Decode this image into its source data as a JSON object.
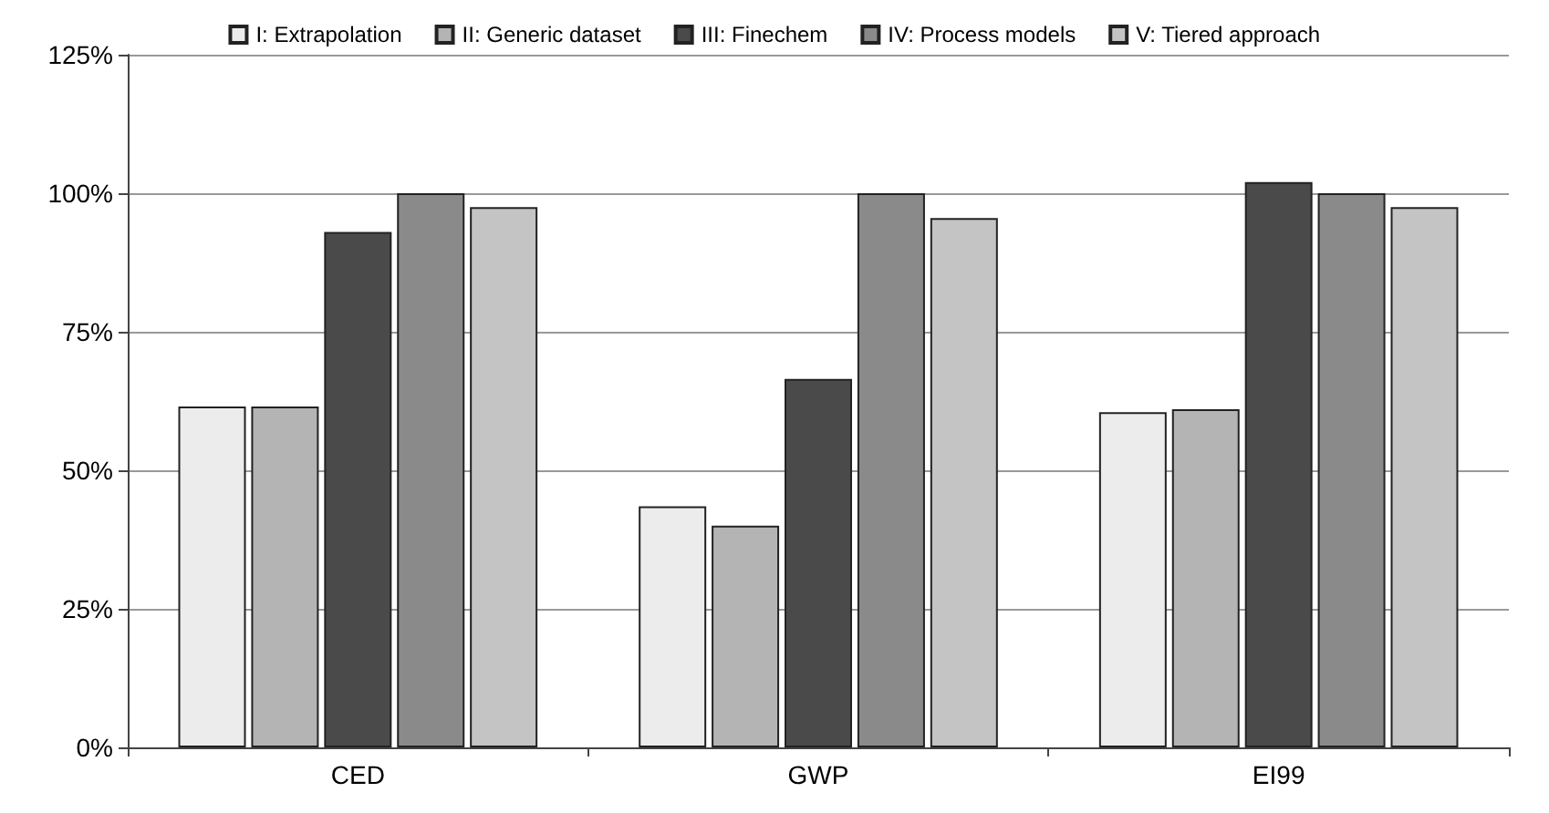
{
  "chart_data": {
    "type": "bar",
    "categories": [
      "CED",
      "GWP",
      "EI99"
    ],
    "series": [
      {
        "name": "I: Extrapolation",
        "color": "#ececec",
        "values": [
          61.5,
          43.5,
          60.5
        ]
      },
      {
        "name": "II: Generic dataset",
        "color": "#b4b4b4",
        "values": [
          61.5,
          40,
          61
        ]
      },
      {
        "name": "III: Finechem",
        "color": "#4a4a4a",
        "values": [
          93,
          66.5,
          102
        ]
      },
      {
        "name": "IV: Process models",
        "color": "#8a8a8a",
        "values": [
          100,
          100,
          100
        ]
      },
      {
        "name": "V: Tiered approach",
        "color": "#c4c4c4",
        "values": [
          97.5,
          95.5,
          97.5
        ]
      }
    ],
    "ylim": [
      0,
      125
    ],
    "yticks": [
      {
        "value": 0,
        "label": "0%"
      },
      {
        "value": 25,
        "label": "25%"
      },
      {
        "value": 50,
        "label": "50%"
      },
      {
        "value": 75,
        "label": "75%"
      },
      {
        "value": 100,
        "label": "100%"
      },
      {
        "value": 125,
        "label": "125%"
      }
    ],
    "grid": "y",
    "legend": "top"
  }
}
